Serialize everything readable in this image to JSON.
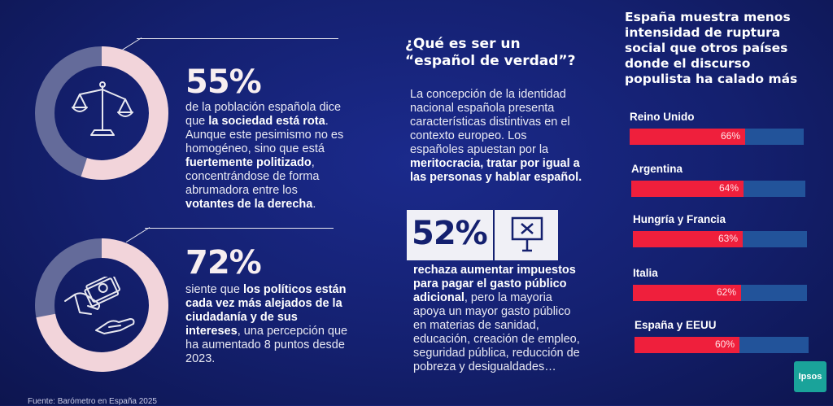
{
  "stat1": {
    "value": "55%",
    "text_a": "de la población española dice que ",
    "text_b": "la sociedad está rota",
    "text_c": ". Aunque este pesimismo no es homogéneo, sino que está ",
    "text_d": "fuertemente politizado",
    "text_e": ", concentrándose de forma abrumadora entre los ",
    "text_f": "votantes de la derecha",
    "text_g": ".",
    "donut_fraction": 0.55,
    "icon": "scales-icon"
  },
  "stat2": {
    "value": "72%",
    "text_a": "siente que ",
    "text_b": "los políticos están cada vez más alejados de la ciudadanía y de sus intereses",
    "text_c": ", una percepción que ha aumentado 8 puntos desde 2023.",
    "donut_fraction": 0.72,
    "icon": "hand-money-icon"
  },
  "middle": {
    "title_line1": "¿Qué es ser un",
    "title_line2": "“español de verdad”?",
    "text_a": "La concepción de la identidad nacional española presenta características distintivas en el contexto europeo. Los españoles apuestan por la ",
    "text_b": "meritocracia, tratar por igual a las personas y hablar español.",
    "stat_value": "52%",
    "stat_icon": "sign-x-icon",
    "stat_text_a": "rechaza aumentar impuestos para pagar el gasto público adicional",
    "stat_text_b": ", pero la mayoria apoya un mayor gasto público en materias de sanidad, educación, creación de empleo, seguridad pública, reducción de pobreza y desigualdades…"
  },
  "right": {
    "title": "España muestra menos intensidad de ruptura social que otros países donde el discurso populista ha calado más",
    "bars": [
      {
        "label": "Reino Unido",
        "value": 66,
        "value_text": "66%"
      },
      {
        "label": "Argentina",
        "value": 64,
        "value_text": "64%"
      },
      {
        "label": "Hungría y Francia",
        "value": 63,
        "value_text": "63%"
      },
      {
        "label": "Italia",
        "value": 62,
        "value_text": "62%"
      },
      {
        "label": "España y EEUU",
        "value": 60,
        "value_text": "60%"
      }
    ]
  },
  "footer": {
    "source": "Fuente: Barómetro en España 2025",
    "logo": "Ipsos"
  },
  "colors": {
    "background": "#14206f",
    "bar_fill": "#ef1f3c",
    "bar_track": "#22539a",
    "donut_track": "#646b9a",
    "donut_fill": "#f2d4da",
    "logo": "#1aa39a"
  }
}
